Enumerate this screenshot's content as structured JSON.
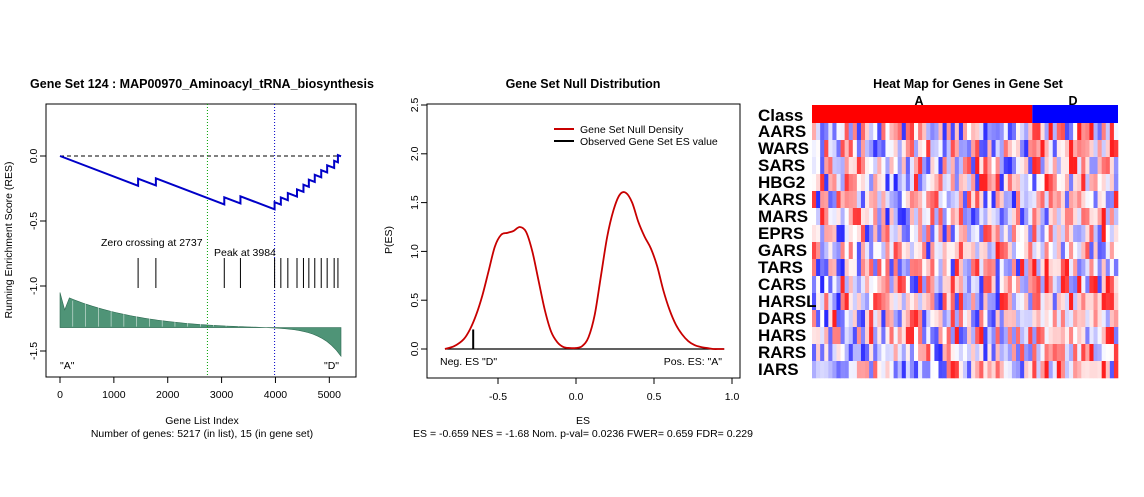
{
  "colors": {
    "res_line": "#0000c8",
    "null_density": "#c80000",
    "observed": "#000000",
    "ranked_fill": "#4f9477",
    "zero_line": "#00a000",
    "peak_line": "#0000c8",
    "class_a": "#ff0000",
    "class_d": "#0000ff"
  },
  "chart_data": [
    {
      "type": "line",
      "title": "Gene Set  124 : MAP00970_Aminoacyl_tRNA_biosynthesis",
      "xlabel": "Gene List Index",
      "ylabel": "Running Enrichment Score (RES)",
      "subtitle": "Number of genes: 5217 (in list), 15 (in gene set)",
      "xlim": [
        0,
        5217
      ],
      "ylim": [
        -1.6,
        0.4
      ],
      "xticks": [
        "0",
        "1000",
        "2000",
        "3000",
        "4000",
        "5000"
      ],
      "yticks": [
        "0.0",
        "-0.5",
        "-1.0",
        "-1.5"
      ],
      "hits": [
        1450,
        1780,
        3050,
        3350,
        3984,
        4100,
        4230,
        4400,
        4520,
        4620,
        4730,
        4850,
        4960,
        5090,
        5160
      ],
      "zero_crossing_label": "Zero crossing at 2737",
      "zero_crossing": 2737,
      "peak_label": "Peak at 3984",
      "peak": 3984,
      "peak_es": -0.659,
      "left_label": "\"A\"",
      "right_label": "\"D\"",
      "grid": false
    },
    {
      "type": "line",
      "title": "Gene Set Null Distribution",
      "xlabel": "ES",
      "ylabel": "P(ES)",
      "subtitle": "ES = -0.659  NES = -1.68 Nom. p-val= 0.0236 FWER= 0.659 FDR= 0.229",
      "xlim": [
        -0.9,
        1.0
      ],
      "ylim": [
        -0.1,
        2.5
      ],
      "xticks": [
        "-0.5",
        "0.0",
        "0.5",
        "1.0"
      ],
      "yticks": [
        "0.0",
        "0.5",
        "1.0",
        "1.5",
        "2.0",
        "2.5"
      ],
      "series": [
        {
          "name": "Gene Set Null Density",
          "x": [
            -0.84,
            -0.78,
            -0.72,
            -0.68,
            -0.64,
            -0.6,
            -0.56,
            -0.52,
            -0.48,
            -0.44,
            -0.4,
            -0.36,
            -0.32,
            -0.28,
            -0.24,
            -0.2,
            -0.16,
            -0.12,
            -0.08,
            -0.04,
            0.0,
            0.04,
            0.08,
            0.12,
            0.16,
            0.2,
            0.24,
            0.28,
            0.32,
            0.36,
            0.4,
            0.44,
            0.48,
            0.52,
            0.56,
            0.6,
            0.64,
            0.68,
            0.72,
            0.76,
            0.8,
            0.84,
            0.88,
            0.92,
            0.95
          ],
          "y": [
            0.0,
            0.03,
            0.1,
            0.2,
            0.35,
            0.55,
            0.8,
            1.05,
            1.17,
            1.19,
            1.21,
            1.25,
            1.2,
            1.0,
            0.7,
            0.4,
            0.18,
            0.07,
            0.02,
            0.01,
            0.01,
            0.03,
            0.12,
            0.35,
            0.75,
            1.15,
            1.42,
            1.58,
            1.6,
            1.5,
            1.3,
            1.15,
            1.03,
            0.85,
            0.6,
            0.4,
            0.25,
            0.15,
            0.08,
            0.04,
            0.02,
            0.01,
            0.0,
            0.0,
            0.0
          ]
        }
      ],
      "observed": {
        "name": "Observed Gene Set ES value",
        "es": -0.659,
        "height": 0.2
      },
      "neg_label": "Neg. ES \"D\"",
      "pos_label": "Pos. ES: \"A\"",
      "legend": "top-right",
      "grid": false
    },
    {
      "type": "heatmap",
      "title": "Heat Map for Genes in Gene Set",
      "class_row_label": "Class",
      "class_a_label": "A",
      "class_d_label": "D",
      "rows": [
        "AARS",
        "WARS",
        "SARS",
        "HBG2",
        "KARS",
        "MARS",
        "EPRS",
        "GARS",
        "TARS",
        "CARS",
        "HARSL",
        "DARS",
        "HARS",
        "RARS",
        "IARS"
      ],
      "samples_a": 54,
      "samples_d": 21,
      "seed": 20970
    }
  ]
}
